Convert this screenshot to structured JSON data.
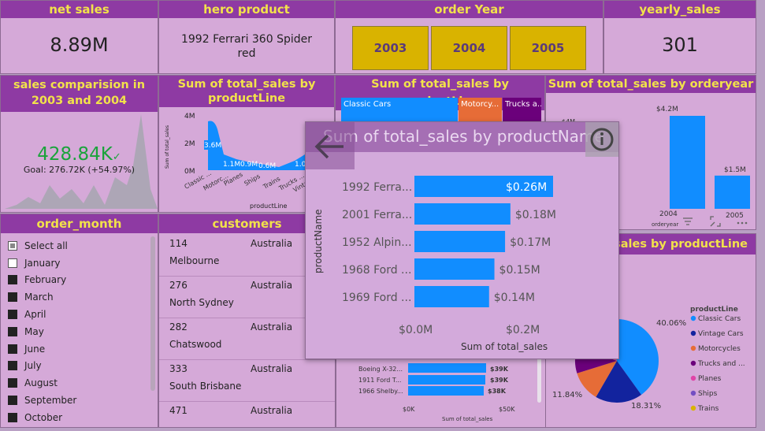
{
  "kpis": {
    "net_sales": {
      "title": "net sales",
      "value": "8.89M"
    },
    "hero_product": {
      "title": "hero product",
      "value": "1992 Ferrari 360 Spider red"
    },
    "order_year": {
      "title": "order Year",
      "years": [
        "2003",
        "2004",
        "2005"
      ]
    },
    "yearly_sales": {
      "title": "yearly_sales",
      "value": "301"
    }
  },
  "sales_compare": {
    "title": "sales comparision in 2003 and 2004",
    "value": "428.84K",
    "check": "✓",
    "goal": "Goal: 276.72K (+54.97%)"
  },
  "by_productline_small": {
    "title": "Sum of total_sales by productLine",
    "ylabel": "Sum of total_sales",
    "xlabel": "productLine",
    "yticks": [
      "4M",
      "2M",
      "0M"
    ],
    "categories": [
      "Classic ...",
      "Motorc...",
      "Planes",
      "Ships",
      "Trains",
      "Trucks ...",
      "Vinta..."
    ],
    "data_labels": [
      "3.6M",
      "1.1M",
      "0.9M",
      "0.6M",
      "1.0"
    ]
  },
  "treemap": {
    "title": "Sum of total_sales by productLine",
    "cells": [
      "Classic Cars",
      "Motorcy...",
      "Trucks a..."
    ]
  },
  "by_orderyear": {
    "title": "Sum of total_sales by orderyear",
    "ytick": "$4M",
    "xlabel": "orderyear",
    "categories": [
      "2004",
      "2005"
    ],
    "data_labels": [
      "$4.2M",
      "$1.5M"
    ]
  },
  "order_month": {
    "title": "order_month",
    "items": [
      {
        "label": "Select all",
        "state": "partial"
      },
      {
        "label": "January",
        "state": "empty"
      },
      {
        "label": "February",
        "state": "filled"
      },
      {
        "label": "March",
        "state": "filled"
      },
      {
        "label": "April",
        "state": "filled"
      },
      {
        "label": "May",
        "state": "filled"
      },
      {
        "label": "June",
        "state": "filled"
      },
      {
        "label": "July",
        "state": "filled"
      },
      {
        "label": "August",
        "state": "filled"
      },
      {
        "label": "September",
        "state": "filled"
      },
      {
        "label": "October",
        "state": "filled"
      }
    ]
  },
  "customers": {
    "title": "customers",
    "rows": [
      {
        "id": "114",
        "country": "Australia",
        "city": "Melbourne"
      },
      {
        "id": "276",
        "country": "Australia",
        "city": "North Sydney"
      },
      {
        "id": "282",
        "country": "Australia",
        "city": "Chatswood"
      },
      {
        "id": "333",
        "country": "Australia",
        "city": "South Brisbane"
      },
      {
        "id": "471",
        "country": "Australia",
        "city": ""
      }
    ]
  },
  "bottom_bars": {
    "labels": [
      "Boeing X-32...",
      "1911 Ford T...",
      "1966 Shelby..."
    ],
    "data_labels": [
      "$39K",
      "$39K",
      "$38K"
    ],
    "xticks": [
      "$0K",
      "$50K"
    ],
    "xlabel": "Sum of total_sales"
  },
  "pie": {
    "title": "Sum of total_sales by productLine",
    "title_visible": "_sales by productLine",
    "legend_title": "productLine",
    "legend": [
      {
        "label": "Classic Cars",
        "color": "#118dff"
      },
      {
        "label": "Vintage Cars",
        "color": "#12239e"
      },
      {
        "label": "Motorcycles",
        "color": "#e66c37"
      },
      {
        "label": "Trucks and ...",
        "color": "#6b007b"
      },
      {
        "label": "Planes",
        "color": "#e044a7"
      },
      {
        "label": "Ships",
        "color": "#744ec2"
      },
      {
        "label": "Trains",
        "color": "#d9b300"
      }
    ],
    "data_labels": [
      "40.06%",
      "18.31%",
      "11.84%"
    ]
  },
  "focus": {
    "title": "Sum of total_sales by productName",
    "ylabel": "productName",
    "xlabel": "Sum of total_sales",
    "xticks": [
      "$0.0M",
      "$0.2M"
    ]
  },
  "chart_data": [
    {
      "type": "bar",
      "title": "Sum of total_sales by productName",
      "xlabel": "Sum of total_sales",
      "ylabel": "productName",
      "categories": [
        "1992 Ferra...",
        "2001 Ferra...",
        "1952 Alpin...",
        "1968 Ford ...",
        "1969 Ford ..."
      ],
      "values": [
        0.26,
        0.18,
        0.17,
        0.15,
        0.14
      ],
      "value_labels": [
        "$0.26M",
        "$0.18M",
        "$0.17M",
        "$0.15M",
        "$0.14M"
      ],
      "orientation": "horizontal",
      "xlim": [
        0,
        0.26
      ],
      "unit": "M",
      "color": "#118dff"
    },
    {
      "type": "bar",
      "title": "Sum of total_sales by orderyear",
      "xlabel": "orderyear",
      "categories": [
        "2004",
        "2005"
      ],
      "values": [
        4.2,
        1.5
      ],
      "ylim": [
        0,
        4.2
      ],
      "unit": "M",
      "color": "#118dff"
    },
    {
      "type": "area",
      "title": "Sum of total_sales by productLine",
      "xlabel": "productLine",
      "ylabel": "Sum of total_sales",
      "categories": [
        "Classic ...",
        "Motorc...",
        "Planes",
        "Ships",
        "Trains",
        "Trucks ...",
        "Vinta..."
      ],
      "values": [
        3.6,
        1.1,
        0.9,
        0.6,
        0.2,
        1.0,
        1.8
      ],
      "ylim": [
        0,
        4
      ],
      "unit": "M",
      "color": "#118dff"
    },
    {
      "type": "pie",
      "title": "Sum of total_sales by productLine",
      "slices": [
        {
          "label": "Classic Cars",
          "value": 40.06,
          "color": "#118dff"
        },
        {
          "label": "Vintage Cars",
          "value": 18.31,
          "color": "#12239e"
        },
        {
          "label": "Motorcycles",
          "value": 11.84,
          "color": "#e66c37"
        },
        {
          "label": "Trucks and ...",
          "value": 10.5,
          "color": "#6b007b"
        },
        {
          "label": "Planes",
          "value": 8.8,
          "color": "#e044a7"
        },
        {
          "label": "Ships",
          "value": 6.9,
          "color": "#744ec2"
        },
        {
          "label": "Trains",
          "value": 3.59,
          "color": "#d9b300"
        }
      ]
    }
  ]
}
